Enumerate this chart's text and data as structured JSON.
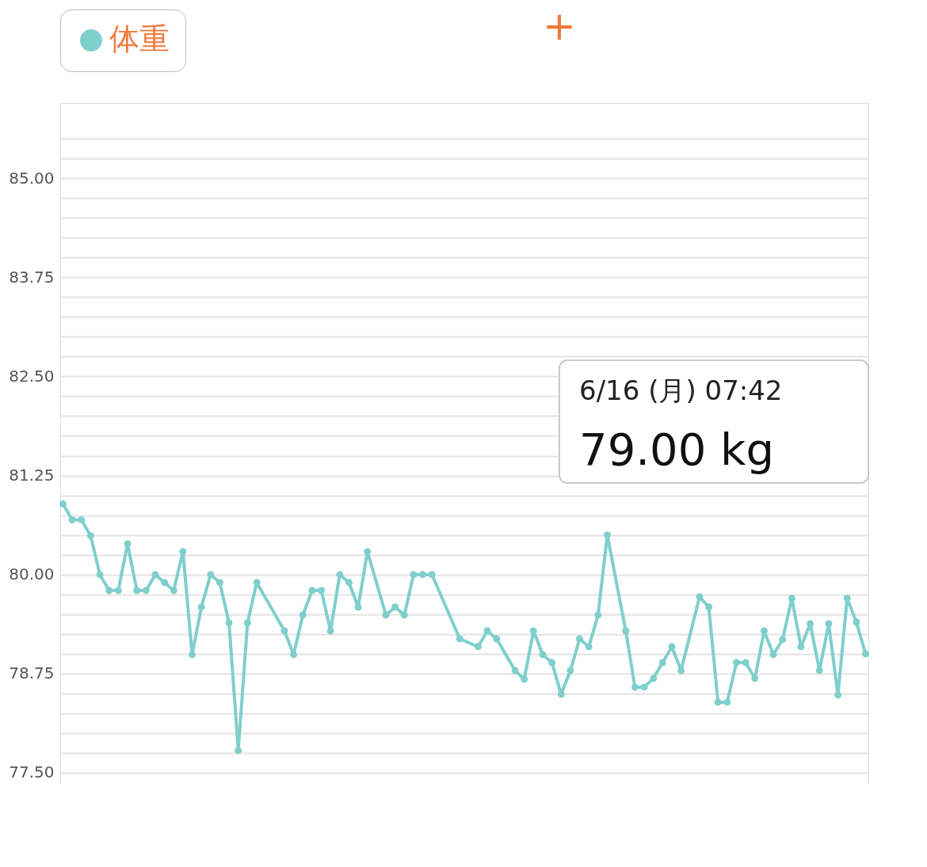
{
  "chart_data": {
    "type": "line",
    "legend": "top",
    "marker": "circle",
    "line_style": "solid",
    "grid": "y",
    "tick_labels": "y",
    "categories": [
      null,
      null,
      null,
      null,
      null,
      null,
      null,
      null,
      null,
      null,
      null,
      null,
      null,
      null,
      null,
      null,
      null,
      null,
      null,
      null,
      null,
      null,
      null,
      null,
      null,
      null,
      null,
      null,
      null,
      null,
      null,
      null,
      null,
      null,
      null,
      null,
      null,
      null,
      null,
      null,
      null,
      null,
      null,
      null,
      null,
      null,
      null,
      null,
      null,
      null,
      null,
      null,
      null,
      null,
      null,
      null,
      null,
      null,
      null,
      null,
      null,
      null,
      null,
      null,
      null,
      null,
      null,
      null,
      null,
      null,
      null,
      null,
      null,
      null,
      null,
      null,
      null,
      null,
      null,
      null,
      null,
      null,
      null,
      null,
      null,
      null,
      null,
      null
    ],
    "series": [
      {
        "name": "体重",
        "color": "#7fcfcc",
        "values": [
          80.89,
          80.69,
          80.69,
          80.49,
          80.0,
          79.8,
          79.8,
          80.39,
          79.8,
          79.8,
          80.0,
          79.9,
          79.8,
          80.29,
          78.99,
          79.59,
          80.0,
          79.9,
          79.39,
          77.78,
          79.39,
          79.9,
          null,
          null,
          79.29,
          78.99,
          79.49,
          79.8,
          79.8,
          79.29,
          80.0,
          79.9,
          79.59,
          80.29,
          null,
          79.49,
          79.59,
          79.49,
          80.0,
          80.0,
          80.0,
          null,
          null,
          79.19,
          null,
          79.09,
          79.29,
          79.19,
          null,
          78.79,
          78.68,
          79.29,
          78.99,
          78.89,
          78.49,
          78.79,
          79.19,
          79.09,
          79.49,
          80.5,
          null,
          79.29,
          78.58,
          78.58,
          78.69,
          78.89,
          79.09,
          78.79,
          null,
          79.72,
          79.59,
          78.39,
          78.39,
          78.89,
          78.89,
          78.69,
          79.29,
          78.99,
          79.18,
          79.7,
          79.09,
          79.38,
          78.79,
          79.38,
          78.48,
          79.7,
          79.4,
          79.0
        ]
      }
    ],
    "ylim": [
      77.36,
      85.95
    ],
    "yticks": [
      {
        "value": 77.5,
        "label": "77.50"
      },
      {
        "value": 77.75,
        "label": null
      },
      {
        "value": 78.0,
        "label": null
      },
      {
        "value": 78.25,
        "label": null
      },
      {
        "value": 78.5,
        "label": null
      },
      {
        "value": 78.75,
        "label": "78.75"
      },
      {
        "value": 79.0,
        "label": null
      },
      {
        "value": 79.25,
        "label": null
      },
      {
        "value": 79.5,
        "label": null
      },
      {
        "value": 79.75,
        "label": null
      },
      {
        "value": 80.0,
        "label": "80.00"
      },
      {
        "value": 80.25,
        "label": null
      },
      {
        "value": 80.5,
        "label": null
      },
      {
        "value": 80.75,
        "label": null
      },
      {
        "value": 81.0,
        "label": null
      },
      {
        "value": 81.25,
        "label": "81.25"
      },
      {
        "value": 81.5,
        "label": null
      },
      {
        "value": 81.75,
        "label": null
      },
      {
        "value": 82.0,
        "label": null
      },
      {
        "value": 82.25,
        "label": null
      },
      {
        "value": 82.5,
        "label": "82.50"
      },
      {
        "value": 82.75,
        "label": null
      },
      {
        "value": 83.0,
        "label": null
      },
      {
        "value": 83.25,
        "label": null
      },
      {
        "value": 83.5,
        "label": null
      },
      {
        "value": 83.75,
        "label": "83.75"
      },
      {
        "value": 84.0,
        "label": null
      },
      {
        "value": 84.25,
        "label": null
      },
      {
        "value": 84.5,
        "label": null
      },
      {
        "value": 84.75,
        "label": null
      },
      {
        "value": 85.0,
        "label": "85.00"
      },
      {
        "value": 85.25,
        "label": null
      },
      {
        "value": 85.5,
        "label": null
      }
    ],
    "annotations": [
      "+",
      "6/16 (月) 07:42",
      "79.00 kg"
    ]
  }
}
